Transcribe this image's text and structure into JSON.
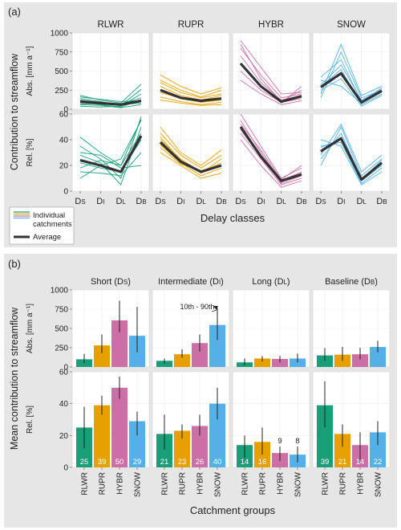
{
  "colors": {
    "RLWR": "#1a9e77",
    "RUPR": "#e6a100",
    "HYBR": "#cd6ea6",
    "SNOW": "#56b0e8",
    "avg": "#333333",
    "background": "#e6e6e6"
  },
  "panel_a": {
    "label": "(a)",
    "y_title": "Contribution to streamflow",
    "row_labels": [
      "Abs. [mm a⁻¹]",
      "Rel. [%]"
    ],
    "x_title": "Delay classes",
    "x_ticks": [
      "D",
      "D",
      "D",
      "D"
    ],
    "x_tick_subs": [
      "S",
      "I",
      "L",
      "B"
    ],
    "legend": {
      "individual": "Individual catchments",
      "average": "Average"
    }
  },
  "panel_b": {
    "label": "(b)",
    "y_title": "Mean contribution to streamflow",
    "row_labels": [
      "Abs. [mm a⁻¹]",
      "Rel. [%]"
    ],
    "x_title": "Catchment groups",
    "annotation": "10th - 90th"
  },
  "chart_data": [
    {
      "type": "line",
      "panel": "a",
      "facets": [
        "RLWR",
        "RUPR",
        "HYBR",
        "SNOW"
      ],
      "x": [
        "DS",
        "DI",
        "DL",
        "DB"
      ],
      "abs": {
        "ylim": [
          0,
          1000
        ],
        "yticks": [
          0,
          250,
          500,
          750,
          1000
        ],
        "average": {
          "RLWR": [
            100,
            80,
            60,
            110
          ],
          "RUPR": [
            250,
            150,
            110,
            140
          ],
          "HYBR": [
            600,
            300,
            100,
            170
          ],
          "SNOW": [
            290,
            470,
            90,
            240
          ]
        },
        "individual": {
          "RLWR": [
            [
              180,
              120,
              80,
              330
            ],
            [
              140,
              100,
              50,
              260
            ],
            [
              90,
              60,
              30,
              120
            ],
            [
              60,
              50,
              20,
              60
            ],
            [
              120,
              90,
              70,
              150
            ],
            [
              40,
              30,
              40,
              200
            ],
            [
              160,
              130,
              100,
              110
            ],
            [
              70,
              70,
              60,
              80
            ]
          ],
          "RUPR": [
            [
              450,
              300,
              200,
              280
            ],
            [
              380,
              250,
              160,
              250
            ],
            [
              300,
              180,
              120,
              180
            ],
            [
              220,
              140,
              90,
              120
            ],
            [
              160,
              100,
              60,
              90
            ],
            [
              120,
              80,
              50,
              60
            ],
            [
              350,
              220,
              150,
              200
            ],
            [
              260,
              160,
              100,
              150
            ]
          ],
          "HYBR": [
            [
              900,
              550,
              200,
              220
            ],
            [
              800,
              450,
              150,
              200
            ],
            [
              700,
              350,
              120,
              180
            ],
            [
              500,
              250,
              90,
              140
            ],
            [
              380,
              200,
              60,
              110
            ],
            [
              850,
              400,
              100,
              250
            ],
            [
              600,
              300,
              80,
              300
            ]
          ],
          "SNOW": [
            [
              200,
              850,
              180,
              300
            ],
            [
              150,
              750,
              150,
              250
            ],
            [
              420,
              650,
              100,
              280
            ],
            [
              300,
              520,
              60,
              200
            ],
            [
              250,
              400,
              40,
              180
            ],
            [
              380,
              300,
              80,
              230
            ],
            [
              320,
              580,
              120,
              260
            ]
          ]
        }
      },
      "rel": {
        "ylim": [
          0,
          60
        ],
        "yticks": [
          0,
          20,
          40,
          60
        ],
        "average": {
          "RLWR": [
            24,
            20,
            15,
            43
          ],
          "RUPR": [
            38,
            23,
            15,
            20
          ],
          "HYBR": [
            50,
            27,
            8,
            13
          ],
          "SNOW": [
            31,
            41,
            9,
            22
          ]
        },
        "individual": {
          "RLWR": [
            [
              42,
              30,
              20,
              56
            ],
            [
              35,
              25,
              10,
              58
            ],
            [
              28,
              22,
              5,
              50
            ],
            [
              22,
              18,
              15,
              40
            ],
            [
              15,
              14,
              12,
              30
            ],
            [
              10,
              20,
              25,
              55
            ],
            [
              30,
              28,
              18,
              20
            ],
            [
              18,
              24,
              20,
              45
            ]
          ],
          "RUPR": [
            [
              50,
              30,
              20,
              32
            ],
            [
              45,
              28,
              18,
              28
            ],
            [
              40,
              25,
              15,
              22
            ],
            [
              36,
              22,
              12,
              18
            ],
            [
              30,
              20,
              10,
              14
            ],
            [
              42,
              24,
              14,
              25
            ],
            [
              34,
              21,
              16,
              20
            ]
          ],
          "HYBR": [
            [
              60,
              35,
              10,
              18
            ],
            [
              55,
              30,
              8,
              15
            ],
            [
              50,
              28,
              6,
              12
            ],
            [
              45,
              25,
              5,
              10
            ],
            [
              40,
              20,
              3,
              8
            ],
            [
              52,
              32,
              9,
              20
            ],
            [
              48,
              26,
              7,
              14
            ]
          ],
          "SNOW": [
            [
              20,
              50,
              12,
              25
            ],
            [
              25,
              45,
              10,
              22
            ],
            [
              30,
              42,
              8,
              20
            ],
            [
              35,
              38,
              6,
              18
            ],
            [
              40,
              35,
              5,
              15
            ],
            [
              28,
              52,
              15,
              28
            ],
            [
              34,
              40,
              9,
              24
            ]
          ]
        }
      }
    },
    {
      "type": "bar",
      "panel": "b",
      "facets": [
        "Short (DS)",
        "Intermediate (DI)",
        "Long (DL)",
        "Baseline (DB)"
      ],
      "facet_names": [
        "Short (D",
        "Intermediate (D",
        "Long (D",
        "Baseline (D"
      ],
      "facet_subs": [
        "S",
        "I",
        "L",
        "B"
      ],
      "categories": [
        "RLWR",
        "RUPR",
        "HYBR",
        "SNOW"
      ],
      "abs": {
        "ylim": [
          0,
          1000
        ],
        "yticks": [
          0,
          250,
          500,
          750,
          1000
        ],
        "values": [
          [
            100,
            280,
            605,
            405
          ],
          [
            80,
            165,
            310,
            545
          ],
          [
            60,
            110,
            105,
            110
          ],
          [
            150,
            160,
            165,
            260
          ]
        ],
        "err_low": [
          [
            50,
            180,
            450,
            190
          ],
          [
            40,
            120,
            200,
            350
          ],
          [
            20,
            70,
            60,
            60
          ],
          [
            80,
            80,
            100,
            190
          ]
        ],
        "err_high": [
          [
            170,
            420,
            860,
            780
          ],
          [
            110,
            230,
            420,
            760
          ],
          [
            110,
            140,
            145,
            175
          ],
          [
            245,
            260,
            250,
            340
          ]
        ]
      },
      "rel": {
        "ylim": [
          0,
          60
        ],
        "yticks": [
          0,
          20,
          40,
          60
        ],
        "values": [
          [
            25,
            39,
            50,
            29
          ],
          [
            21,
            23,
            26,
            40
          ],
          [
            14,
            16,
            9,
            8
          ],
          [
            39,
            21,
            14,
            22
          ]
        ],
        "err_low": [
          [
            12,
            33,
            43,
            20
          ],
          [
            11,
            18,
            20,
            30
          ],
          [
            6,
            8,
            4,
            3
          ],
          [
            25,
            13,
            5,
            14
          ]
        ],
        "err_high": [
          [
            38,
            45,
            57,
            35
          ],
          [
            33,
            27,
            33,
            50
          ],
          [
            20,
            25,
            13,
            13
          ],
          [
            54,
            27,
            22,
            29
          ]
        ],
        "labels": [
          [
            "25",
            "39",
            "50",
            "29"
          ],
          [
            "21",
            "23",
            "26",
            "40"
          ],
          [
            "14",
            "16",
            "9",
            "8"
          ],
          [
            "39",
            "21",
            "14",
            "22"
          ]
        ],
        "label_outside": [
          [
            false,
            false,
            false,
            false
          ],
          [
            false,
            false,
            false,
            false
          ],
          [
            false,
            false,
            true,
            true
          ],
          [
            false,
            false,
            false,
            false
          ]
        ]
      }
    }
  ]
}
